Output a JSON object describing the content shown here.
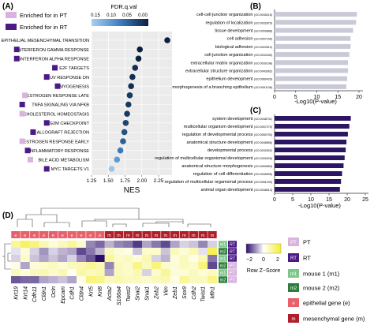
{
  "panels": {
    "A": {
      "label": "(A)",
      "legend": [
        {
          "text": "Enriched for in PT",
          "color": "#d9b3de"
        },
        {
          "text": "Enriched for in RT",
          "color": "#4b1a86"
        }
      ],
      "colorbar": {
        "title": "FDR.q.val",
        "ticks": [
          "0.15",
          "0.10",
          "0.05",
          "0.00"
        ]
      },
      "chart_data": {
        "type": "scatter",
        "xlabel": "NES",
        "xlim": [
          1.25,
          2.45
        ],
        "xticks": [
          1.25,
          1.5,
          1.75,
          2.0,
          2.25
        ],
        "xtick_labels": [
          "1.25",
          "1.50",
          "1.75",
          "2.00",
          "2.25"
        ],
        "points": [
          {
            "term": "EPITHELIAL MESENCHYMAL TRANSITION",
            "nes": 2.38,
            "fdr": 0.0,
            "group": "RT"
          },
          {
            "term": "INTERFERON GAMMA RESPONSE",
            "nes": 1.97,
            "fdr": 0.0,
            "group": "RT"
          },
          {
            "term": "INTERFERON ALPHA RESPONSE",
            "nes": 1.95,
            "fdr": 0.0,
            "group": "RT"
          },
          {
            "term": "E2F TARGETS",
            "nes": 1.9,
            "fdr": 0.01,
            "group": "RT"
          },
          {
            "term": "UV RESPONSE DN",
            "nes": 1.86,
            "fdr": 0.01,
            "group": "RT"
          },
          {
            "term": "MYOGENESIS",
            "nes": 1.84,
            "fdr": 0.01,
            "group": "RT"
          },
          {
            "term": "ESTROGEN RESPONSE LATE",
            "nes": 1.82,
            "fdr": 0.02,
            "group": "PT"
          },
          {
            "term": "TNFA SIGNALING VIA NFKB",
            "nes": 1.8,
            "fdr": 0.02,
            "group": "RT"
          },
          {
            "term": "CHOLESTEROL HOMEOSTASIS",
            "nes": 1.78,
            "fdr": 0.02,
            "group": "PT"
          },
          {
            "term": "G2M CHECKPOINT",
            "nes": 1.76,
            "fdr": 0.03,
            "group": "RT"
          },
          {
            "term": "ALLOGRAFT REJECTION",
            "nes": 1.74,
            "fdr": 0.04,
            "group": "RT"
          },
          {
            "term": "ESTROGEN RESPONSE EARLY",
            "nes": 1.72,
            "fdr": 0.05,
            "group": "PT"
          },
          {
            "term": "INFLAMMATORY RESPONSE",
            "nes": 1.68,
            "fdr": 0.07,
            "group": "RT"
          },
          {
            "term": "BILE ACID METABOLISM",
            "nes": 1.63,
            "fdr": 0.1,
            "group": "PT"
          },
          {
            "term": "MYC TARGETS V1",
            "nes": 1.55,
            "fdr": 0.14,
            "group": "RT"
          }
        ]
      }
    },
    "B": {
      "label": "(B)",
      "chart_data": {
        "type": "bar",
        "orientation": "horizontal",
        "xlabel": "-Log10(P-value)",
        "xlim": [
          0,
          20
        ],
        "xticks": [
          0,
          5,
          10,
          15,
          20
        ],
        "color": "#c9c9d8",
        "categories": [
          "cell-cell junction organization (GO:0045216)",
          "regulation of localization (GO:0032879)",
          "tissue development (GO:0009888)",
          "cell adhesion (GO:0007155)",
          "biological adhesion (GO:0022610)",
          "cell junction organization (GO:0034330)",
          "extracellular matrix organization (GO:0030198)",
          "extracellular structure organization (GO:0043062)",
          "epithelium development (GO:0060429)",
          "morphogenesis of a branching epithelium (GO:0061138)"
        ],
        "values": [
          19.5,
          19.3,
          18.6,
          18.0,
          18.0,
          17.7,
          17.4,
          17.4,
          17.2,
          17.0
        ]
      }
    },
    "C": {
      "label": "(C)",
      "chart_data": {
        "type": "bar",
        "orientation": "horizontal",
        "xlabel": "-Log10(P-value)",
        "xlim": [
          0,
          25
        ],
        "xticks": [
          0,
          5,
          10,
          15,
          20,
          25
        ],
        "color": "#2c1563",
        "categories": [
          "system development (GO:0048731)",
          "multicellular organism development (GO:0007275)",
          "regulation of developmental process (GO:0050793)",
          "anatomical structure development (GO:0048856)",
          "developmental process (GO:0032502)",
          "regulation of multicellular organismal development (GO:2000026)",
          "anatomical structure morphogenesis (GO:0009653)",
          "regulation of cell differentiation (GO:0045595)",
          "regulation of multicellular organismal process (GO:0051239)",
          "animal organ development (GO:0048513)"
        ],
        "values": [
          21.0,
          20.6,
          20.2,
          19.8,
          19.6,
          19.3,
          19.0,
          18.6,
          18.3,
          18.0
        ]
      }
    },
    "D": {
      "label": "(D)",
      "legend": {
        "pt": {
          "box": "PT",
          "text": "PT",
          "color": "#d9b3de"
        },
        "rt": {
          "box": "RT",
          "text": "RT",
          "color": "#4b1a86"
        },
        "m1": {
          "box": "m1",
          "text": "mouse 1 (m1)",
          "color": "#7ec78a"
        },
        "m2": {
          "box": "m2",
          "text": "mouse 2 (m2)",
          "color": "#2e7d3c"
        },
        "epi": {
          "box": "e",
          "text": "epithelial gene (e)",
          "color": "#e8606a"
        },
        "mes": {
          "box": "m",
          "text": "mesenchymal gene (m)",
          "color": "#b01e2a"
        }
      },
      "colorscale": {
        "ticks": [
          "−2",
          "0",
          "2"
        ],
        "title": "Row Z−Score"
      },
      "chart_data": {
        "type": "heatmap",
        "columns": [
          "Krt19",
          "Krt14",
          "Cdh11",
          "Cldn1",
          "Ocln",
          "Epcam",
          "Cdh1",
          "Cldn4",
          "Krt5",
          "Krt8",
          "Acta2",
          "S100a4",
          "Twist2",
          "Snai2",
          "Snai1",
          "Zeb2",
          "Vim",
          "Zeb1",
          "Sox9",
          "Cdh2",
          "Twist1",
          "Mfn1"
        ],
        "column_type": [
          "e",
          "e",
          "e",
          "e",
          "e",
          "e",
          "e",
          "e",
          "e",
          "e",
          "m",
          "m",
          "m",
          "m",
          "m",
          "m",
          "m",
          "m",
          "m",
          "m",
          "m",
          "m"
        ],
        "rows": [
          {
            "mouse": "m1",
            "group": "RT",
            "values": [
              0.8,
              1.2,
              1.0,
              0.6,
              0.3,
              0.5,
              0.8,
              0.4,
              -0.8,
              -1.0,
              -0.5,
              -0.8,
              -0.9,
              -1.3,
              -0.6,
              -0.9,
              -1.2,
              -0.6,
              -0.3,
              -0.4,
              -0.8,
              -0.3
            ]
          },
          {
            "mouse": "m2",
            "group": "RT",
            "values": [
              -0.2,
              0.3,
              -0.3,
              -0.7,
              -0.3,
              -0.5,
              -0.6,
              -1.2,
              -0.9,
              -0.5,
              0.5,
              0.3,
              0.2,
              -0.4,
              0.4,
              0.4,
              -0.4,
              0.5,
              0.3,
              0.6,
              -0.2,
              1.3
            ]
          },
          {
            "mouse": "m1",
            "group": "RT",
            "values": [
              -0.3,
              0.4,
              -0.4,
              -0.6,
              -0.4,
              -0.6,
              -0.3,
              -0.8,
              -1.1,
              -1.6,
              0.8,
              0.4,
              0.5,
              0.3,
              0.6,
              -0.3,
              -0.5,
              0.3,
              0.5,
              0.2,
              0.6,
              -0.9
            ]
          },
          {
            "mouse": "m2",
            "group": "PT",
            "values": [
              0.2,
              -0.6,
              0.3,
              0.4,
              0.5,
              0.3,
              0.5,
              0.6,
              0.8,
              0.6,
              -0.8,
              0.5,
              0.4,
              0.9,
              0.5,
              1.0,
              0.4,
              0.3,
              0.5,
              0.4,
              1.0,
              -1.2
            ]
          },
          {
            "mouse": "m1",
            "group": "PT",
            "values": [
              0.5,
              0.3,
              0.5,
              0.6,
              0.4,
              0.6,
              0.1,
              0.7,
              0.5,
              0.6,
              -0.6,
              0.5,
              0.4,
              0.6,
              -0.3,
              0.4,
              0.8,
              0.3,
              0.3,
              0.5,
              0.3,
              0.5
            ]
          },
          {
            "mouse": "m2",
            "group": "PT",
            "values": [
              -1.1,
              -1.0,
              -1.0,
              -0.6,
              -0.5,
              -0.4,
              -0.6,
              0.2,
              1.0,
              0.9,
              0.5,
              0.6,
              0.5,
              0.5,
              0.4,
              0.5,
              0.6,
              0.2,
              0.8,
              0.5,
              0.5,
              0.9
            ]
          }
        ]
      }
    }
  }
}
